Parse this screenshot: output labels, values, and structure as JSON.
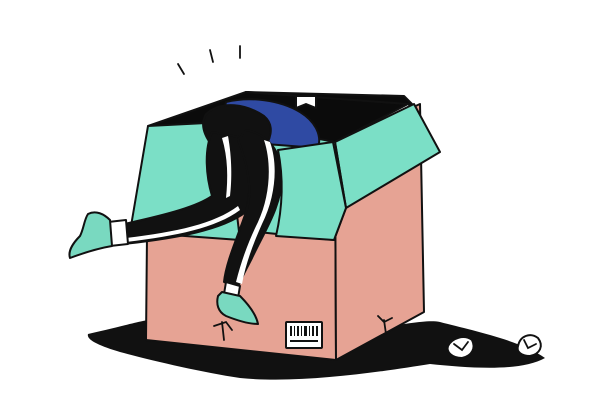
{
  "illustration": {
    "subject": "person-diving-into-cardboard-box",
    "colors": {
      "background": "#ffffff",
      "box_front": "#e6a394",
      "box_flap": "#7bdfc6",
      "box_inside": "#0b0b0b",
      "outline": "#111111",
      "shadow": "#111111",
      "pants": "#111111",
      "shirt": "#2f4aa3",
      "shoe": "#79d9c0",
      "stripe": "#ffffff",
      "sock": "#ffffff"
    },
    "icons": [
      "motion-marks",
      "barcode-label",
      "fragile-mark",
      "crumpled-paper"
    ]
  }
}
